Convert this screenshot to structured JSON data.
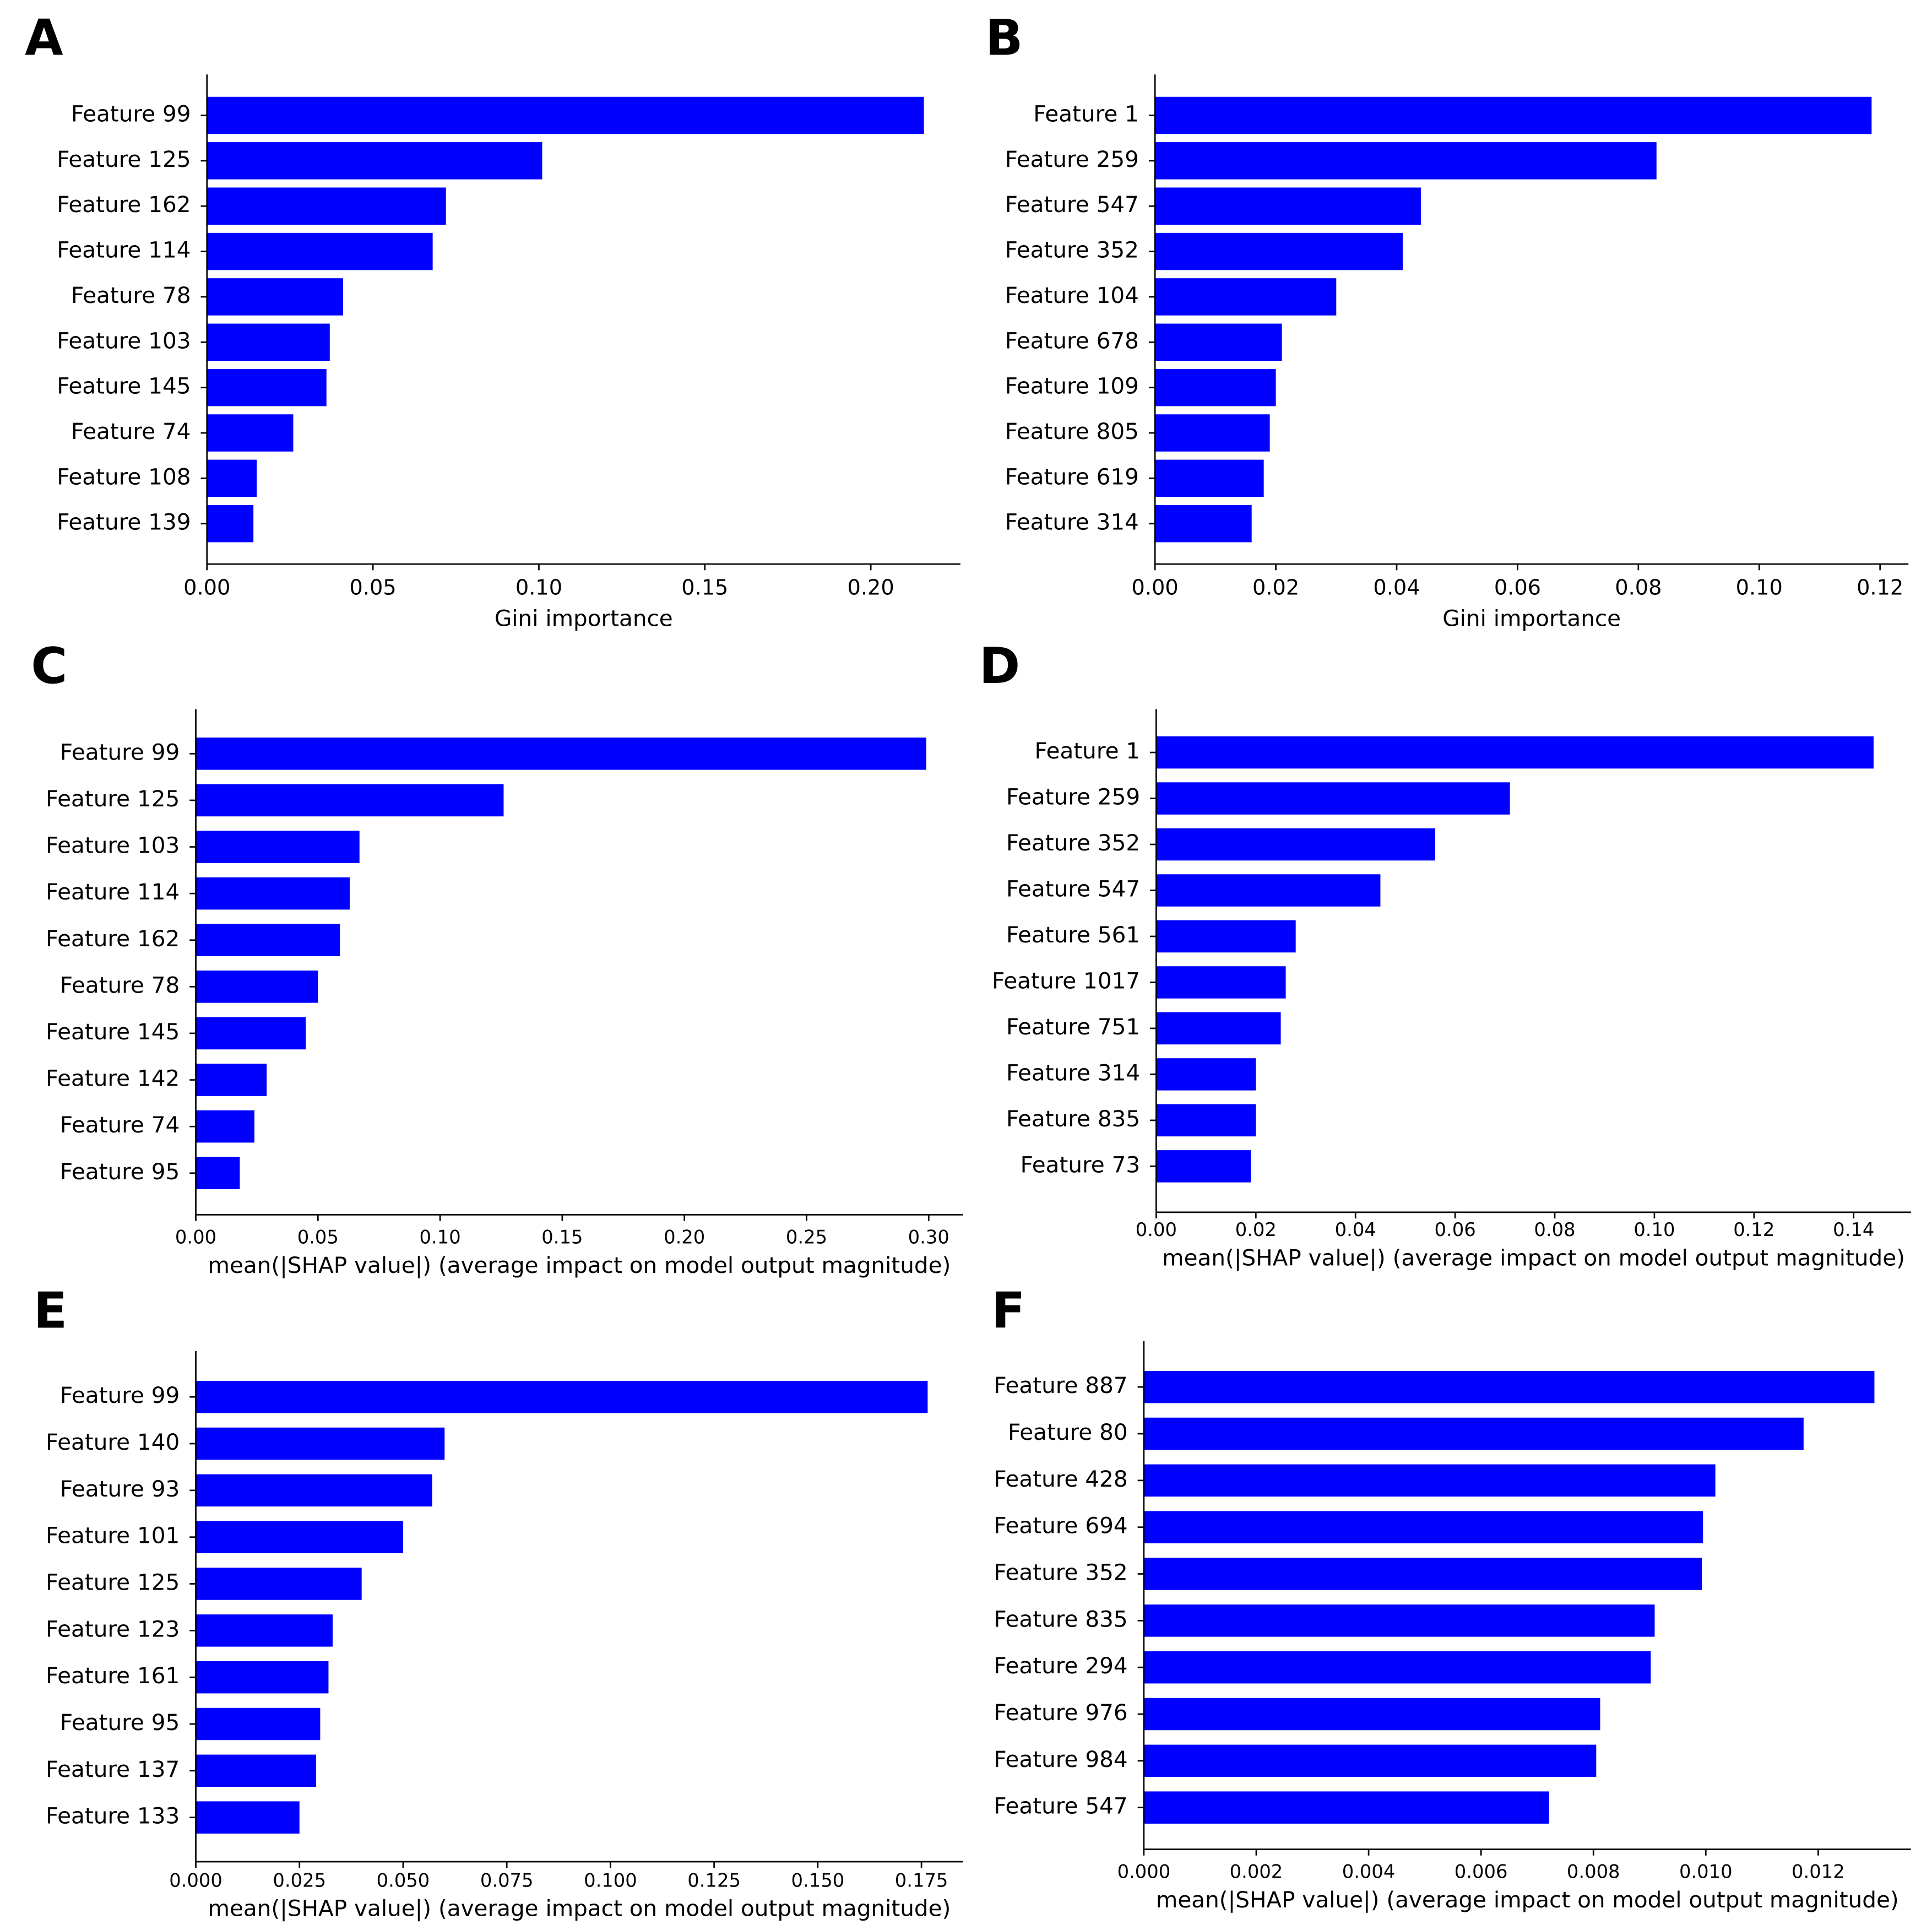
{
  "chart_data": [
    {
      "type": "barh",
      "panel": "A",
      "xlabel": "Gini importance",
      "color": "#0000ff",
      "categories": [
        "Feature 99",
        "Feature 125",
        "Feature 162",
        "Feature 114",
        "Feature 78",
        "Feature 103",
        "Feature 145",
        "Feature 74",
        "Feature 108",
        "Feature 139"
      ],
      "values": [
        0.216,
        0.101,
        0.072,
        0.068,
        0.041,
        0.037,
        0.036,
        0.026,
        0.015,
        0.014
      ],
      "xlim": [
        0,
        0.227
      ],
      "xticks": [
        {
          "value": 0,
          "label": "0.00"
        },
        0.05,
        {
          "value": 0.1,
          "label": "0.10"
        },
        0.15,
        {
          "value": 0.2,
          "label": "0.20"
        }
      ]
    },
    {
      "type": "barh",
      "panel": "B",
      "xlabel": "Gini importance",
      "color": "#0000ff",
      "categories": [
        "Feature 1",
        "Feature 259",
        "Feature 547",
        "Feature 352",
        "Feature 104",
        "Feature 678",
        "Feature 109",
        "Feature 805",
        "Feature 619",
        "Feature 314"
      ],
      "values": [
        0.1186,
        0.083,
        0.044,
        0.041,
        0.03,
        0.021,
        0.02,
        0.019,
        0.018,
        0.016
      ],
      "xlim": [
        0,
        0.1247
      ],
      "xticks": [
        {
          "value": 0,
          "label": "0.00"
        },
        0.02,
        0.04,
        0.06,
        0.08,
        {
          "value": 0.1,
          "label": "0.10"
        },
        0.12
      ]
    },
    {
      "type": "barh",
      "panel": "C",
      "xlabel": "mean(|SHAP value|) (average impact on model output magnitude)",
      "color": "#0000ff",
      "categories": [
        "Feature 99",
        "Feature 125",
        "Feature 103",
        "Feature 114",
        "Feature 162",
        "Feature 78",
        "Feature 145",
        "Feature 142",
        "Feature 74",
        "Feature 95"
      ],
      "values": [
        0.299,
        0.126,
        0.067,
        0.063,
        0.059,
        0.05,
        0.045,
        0.029,
        0.024,
        0.018
      ],
      "xlim": [
        0,
        0.314
      ],
      "xticks": [
        {
          "value": 0,
          "label": "0.00"
        },
        0.05,
        {
          "value": 0.1,
          "label": "0.10"
        },
        0.15,
        {
          "value": 0.2,
          "label": "0.20"
        },
        0.25,
        {
          "value": 0.3,
          "label": "0.30"
        }
      ]
    },
    {
      "type": "barh",
      "panel": "D",
      "xlabel": "mean(|SHAP value|) (average impact on model output magnitude)",
      "color": "#0000ff",
      "categories": [
        "Feature 1",
        "Feature 259",
        "Feature 352",
        "Feature 547",
        "Feature 561",
        "Feature 1017",
        "Feature 751",
        "Feature 314",
        "Feature 835",
        "Feature 73"
      ],
      "values": [
        0.144,
        0.071,
        0.056,
        0.045,
        0.028,
        0.026,
        0.025,
        0.02,
        0.02,
        0.019
      ],
      "xlim": [
        0,
        0.1515
      ],
      "xticks": [
        {
          "value": 0,
          "label": "0.00"
        },
        0.02,
        0.04,
        0.06,
        0.08,
        {
          "value": 0.1,
          "label": "0.10"
        },
        0.12,
        0.14
      ]
    },
    {
      "type": "barh",
      "panel": "E",
      "xlabel": "mean(|SHAP value|) (average impact on model output magnitude)",
      "color": "#0000ff",
      "categories": [
        "Feature 99",
        "Feature 140",
        "Feature 93",
        "Feature 101",
        "Feature 125",
        "Feature 123",
        "Feature 161",
        "Feature 95",
        "Feature 137",
        "Feature 133"
      ],
      "values": [
        0.1765,
        0.06,
        0.057,
        0.05,
        0.04,
        0.033,
        0.032,
        0.03,
        0.029,
        0.025
      ],
      "xlim": [
        0,
        0.185
      ],
      "xticks": [
        {
          "value": 0,
          "label": "0.000"
        },
        0.025,
        {
          "value": 0.05,
          "label": "0.050"
        },
        0.075,
        {
          "value": 0.1,
          "label": "0.100"
        },
        0.125,
        {
          "value": 0.15,
          "label": "0.150"
        },
        0.175
      ]
    },
    {
      "type": "barh",
      "panel": "F",
      "xlabel": "mean(|SHAP value|) (average impact on model output magnitude)",
      "color": "#0000ff",
      "categories": [
        "Feature 887",
        "Feature 80",
        "Feature 428",
        "Feature 694",
        "Feature 352",
        "Feature 835",
        "Feature 294",
        "Feature 976",
        "Feature 984",
        "Feature 547"
      ],
      "values": [
        0.013,
        0.01174,
        0.01017,
        0.00995,
        0.00993,
        0.00909,
        0.00902,
        0.00812,
        0.00805,
        0.00721
      ],
      "xlim": [
        0,
        0.01365
      ],
      "xticks": [
        {
          "value": 0,
          "label": "0.000"
        },
        0.002,
        0.004,
        0.006,
        0.008,
        {
          "value": 0.01,
          "label": "0.010"
        },
        0.012
      ]
    }
  ]
}
